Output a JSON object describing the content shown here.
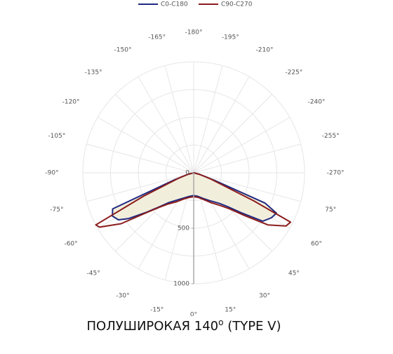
{
  "chart_data": {
    "type": "polar",
    "title": "ПОЛУШИРОКАЯ 140",
    "title_superscript": "o",
    "title_suffix": "(TYPE V)",
    "series": [
      {
        "name": "C0-C180",
        "color": "#1f2a80",
        "fill": "#f2eedc",
        "theta": [
          -90,
          -75,
          -70,
          -66,
          -62,
          -58,
          -55,
          -50,
          -45,
          -40,
          -30,
          -20,
          -10,
          0,
          10,
          20,
          30,
          40,
          45,
          50,
          55,
          60,
          64,
          67,
          70,
          75,
          90
        ],
        "r": [
          0,
          50,
          180,
          800,
          830,
          800,
          720,
          550,
          430,
          350,
          280,
          240,
          215,
          205,
          215,
          245,
          290,
          360,
          430,
          560,
          760,
          810,
          830,
          700,
          200,
          50,
          0
        ]
      },
      {
        "name": "C90-C270",
        "color": "#8b1c1c",
        "theta": [
          -90,
          -75,
          -70,
          -65,
          -62,
          -60,
          -55,
          -50,
          -45,
          -40,
          -30,
          -20,
          -10,
          0,
          10,
          20,
          30,
          40,
          45,
          50,
          55,
          60,
          63,
          65,
          70,
          75,
          90
        ],
        "r": [
          0,
          60,
          150,
          500,
          1000,
          980,
          800,
          560,
          440,
          370,
          300,
          250,
          225,
          215,
          225,
          255,
          310,
          390,
          460,
          600,
          820,
          960,
          980,
          600,
          160,
          60,
          0
        ]
      }
    ],
    "rlim": [
      0,
      1000
    ],
    "rticks": [
      0,
      500,
      1000
    ],
    "rgrid": [
      250,
      500,
      750,
      1000
    ],
    "thetaticks": [
      {
        "value": 0,
        "label": "0°"
      },
      {
        "value": 15,
        "label": "15°"
      },
      {
        "value": 30,
        "label": "30°"
      },
      {
        "value": 45,
        "label": "45°"
      },
      {
        "value": 60,
        "label": "60°"
      },
      {
        "value": 75,
        "label": "75°"
      },
      {
        "value": -270,
        "label": "-270°"
      },
      {
        "value": -255,
        "label": "-255°"
      },
      {
        "value": -240,
        "label": "-240°"
      },
      {
        "value": -225,
        "label": "-225°"
      },
      {
        "value": -210,
        "label": "-210°"
      },
      {
        "value": -195,
        "label": "-195°"
      },
      {
        "value": -180,
        "label": "-180°"
      },
      {
        "value": -165,
        "label": "-165°"
      },
      {
        "value": -150,
        "label": "-150°"
      },
      {
        "value": -135,
        "label": "-135°"
      },
      {
        "value": -120,
        "label": "-120°"
      },
      {
        "value": -105,
        "label": "-105°"
      },
      {
        "value": -90,
        "label": "-90°"
      },
      {
        "value": -75,
        "label": "-75°"
      },
      {
        "value": -60,
        "label": "-60°"
      },
      {
        "value": -45,
        "label": "-45°"
      },
      {
        "value": -30,
        "label": "-30°"
      },
      {
        "value": -15,
        "label": "-15°"
      }
    ]
  }
}
